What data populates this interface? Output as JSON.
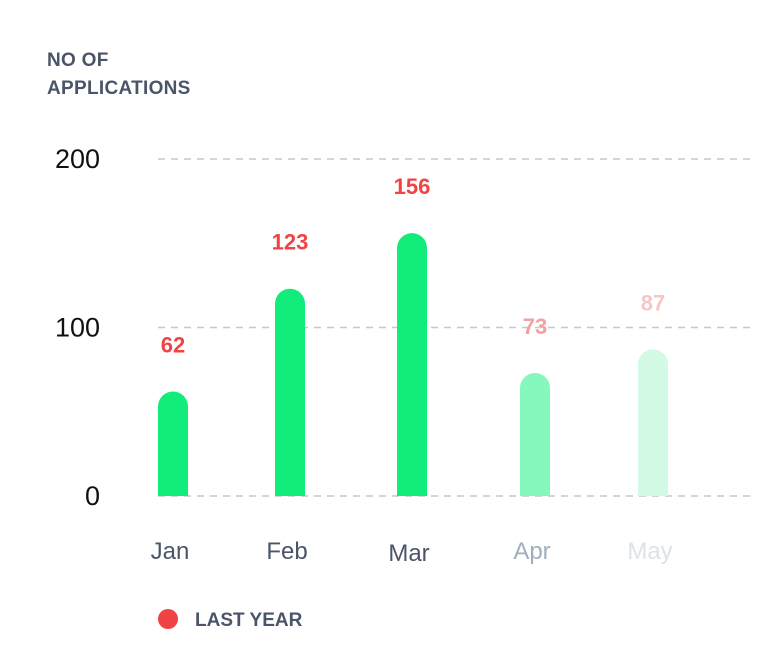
{
  "chart_data": {
    "type": "bar",
    "ylabel_lines": [
      "NO OF",
      "APPLICATIONS"
    ],
    "categories": [
      "Jan",
      "Feb",
      "Mar",
      "Apr",
      "May"
    ],
    "series": [
      {
        "values": [
          62,
          123,
          156,
          73,
          87
        ]
      }
    ],
    "yticks": [
      "0",
      "100",
      "200"
    ],
    "ylim": [
      0,
      200
    ],
    "grid": true,
    "legend": {
      "position": "bottom-left",
      "entries": [
        "LAST YEAR"
      ]
    },
    "colors": {
      "bars": [
        "#12ec7a",
        "#12ec7a",
        "#12ec7a",
        "#86f7bd",
        "#d2faE5"
      ],
      "data_labels": [
        "#f04444",
        "#f04444",
        "#f04444",
        "#f3a0a0",
        "#f8c6c6"
      ],
      "x_ticks": [
        "#4a5568",
        "#4a5568",
        "#4a5568",
        "#a0aec0",
        "#dde2ea"
      ],
      "legend_dot": "#f04444",
      "grid": "#c4c8d0"
    }
  }
}
